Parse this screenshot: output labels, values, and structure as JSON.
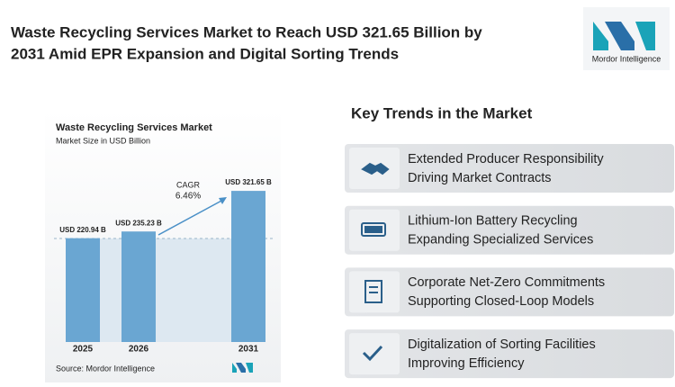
{
  "header": {
    "title_lines": [
      "Waste Recycling Services Market to Reach USD 321.65 Billion by",
      "2031 Amid EPR Expansion and Digital Sorting Trends"
    ]
  },
  "logo": {
    "text": "Mordor Intelligence"
  },
  "chart_data": {
    "type": "bar",
    "title": "Waste Recycling Services Market",
    "subtitle": "Market Size in USD Billion",
    "categories": [
      "2025",
      "2026",
      "2031"
    ],
    "values": [
      220.94,
      235.23,
      321.65
    ],
    "value_labels": [
      "USD 220.94 B",
      "USD 235.23 B",
      "USD 321.65 B"
    ],
    "color": "#6aa6d2",
    "annotations": [
      "CAGR",
      "6.46%"
    ],
    "source": "Source: Mordor Intelligence"
  },
  "trends": {
    "title": "Key Trends in the Market",
    "items": [
      {
        "lines": [
          "Extended Producer Responsibility",
          "Driving Market Contracts"
        ]
      },
      {
        "lines": [
          "Lithium-Ion Battery Recycling",
          "Expanding Specialized Services"
        ]
      },
      {
        "lines": [
          "Corporate Net-Zero Commitments",
          "Supporting Closed-Loop Models"
        ]
      },
      {
        "lines": [
          "Digitalization of Sorting Facilities",
          "Improving Efficiency"
        ]
      }
    ]
  }
}
